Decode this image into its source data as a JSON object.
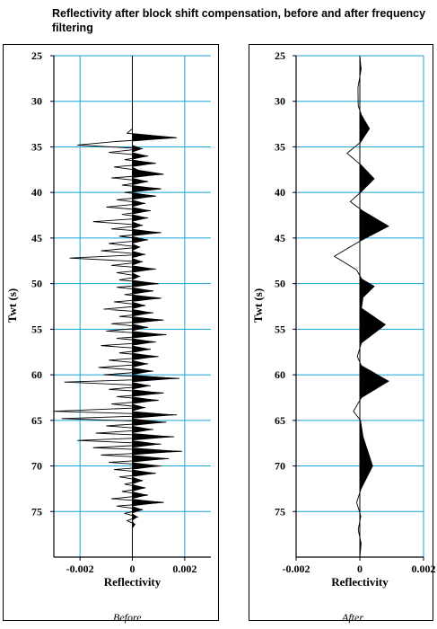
{
  "title": "Reflectivity after block shift compensation, before and after frequency filtering",
  "chart_data": [
    {
      "type": "line",
      "name": "before",
      "caption": "Before",
      "xlabel": "Reflectivity",
      "ylabel": "Twt (s)",
      "xlim": [
        -0.003,
        0.003
      ],
      "ylim": [
        25,
        80
      ],
      "y_inverted": true,
      "x_ticks": [
        -0.002,
        0,
        0.002
      ],
      "x_tick_labels": [
        "-0.002",
        "0",
        "0.002"
      ],
      "y_ticks": [
        25,
        30,
        35,
        40,
        45,
        50,
        55,
        60,
        65,
        70,
        75
      ],
      "y_tick_labels": [
        "25",
        "30",
        "35",
        "40",
        "45",
        "50",
        "55",
        "60",
        "65",
        "70",
        "75"
      ],
      "grid": true,
      "fill_positive": true,
      "series": [
        {
          "twt": [
            25,
            33.0,
            33.5,
            34.0,
            34.4,
            34.8,
            35.2,
            35.6,
            36.0,
            36.4,
            36.8,
            37.2,
            37.6,
            38.0,
            38.4,
            38.8,
            39.2,
            39.6,
            40.0,
            40.4,
            40.8,
            41.2,
            41.6,
            42.0,
            42.4,
            42.8,
            43.2,
            43.6,
            44.0,
            44.4,
            44.8,
            45.2,
            45.6,
            46.0,
            46.4,
            46.8,
            47.2,
            47.6,
            48.0,
            48.4,
            48.8,
            49.2,
            49.6,
            50.0,
            50.4,
            50.8,
            51.2,
            51.6,
            52.0,
            52.4,
            52.8,
            53.2,
            53.6,
            54.0,
            54.4,
            54.8,
            55.2,
            55.6,
            56.0,
            56.4,
            56.8,
            57.2,
            57.6,
            58.0,
            58.4,
            58.8,
            59.2,
            59.6,
            60.0,
            60.4,
            60.8,
            61.2,
            61.6,
            62.0,
            62.4,
            62.8,
            63.2,
            63.6,
            64.0,
            64.4,
            64.8,
            65.2,
            65.6,
            66.0,
            66.4,
            66.8,
            67.2,
            67.6,
            68.0,
            68.4,
            68.8,
            69.2,
            69.6,
            70.0,
            70.4,
            70.8,
            71.2,
            71.6,
            72.0,
            72.4,
            72.8,
            73.2,
            73.6,
            74.0,
            74.4,
            74.8,
            75.2,
            75.6,
            76.0,
            76.4,
            76.8,
            80
          ],
          "reflectivity": [
            0,
            0,
            -0.0002,
            0.0017,
            -0.0006,
            -0.0021,
            0.0004,
            -0.0009,
            0.0006,
            -0.0003,
            0.0009,
            -0.0007,
            0.0003,
            0.0012,
            -0.0008,
            0.0006,
            -0.0004,
            0.0011,
            -0.0003,
            0.0009,
            -0.0006,
            0.0005,
            -0.001,
            0.0007,
            -0.0004,
            0.0006,
            -0.0015,
            0.0004,
            -0.0008,
            0.0011,
            -0.0005,
            0.0006,
            -0.0009,
            0.0003,
            -0.0012,
            0.0005,
            -0.0024,
            0.0004,
            -0.0008,
            0.0009,
            -0.0006,
            0.0003,
            -0.0005,
            0.001,
            -0.0006,
            0.0008,
            -0.0003,
            0.0011,
            -0.0007,
            0.0005,
            -0.0011,
            0.0008,
            -0.0005,
            0.0012,
            -0.0008,
            0.0006,
            -0.001,
            0.0013,
            -0.0006,
            0.0009,
            -0.0012,
            0.0007,
            -0.0005,
            0.001,
            -0.0009,
            0.0006,
            -0.0013,
            0.0008,
            -0.0011,
            0.0018,
            -0.0026,
            0.0007,
            -0.0009,
            0.0012,
            -0.0006,
            0.001,
            -0.0008,
            0.0005,
            -0.003,
            0.0017,
            -0.0027,
            0.0013,
            -0.001,
            0.0008,
            -0.0014,
            0.0016,
            -0.0021,
            0.0011,
            -0.0015,
            0.0019,
            -0.0012,
            0.0014,
            -0.0009,
            0.0011,
            -0.0007,
            0.0009,
            -0.0005,
            0.0004,
            -0.0003,
            0.0005,
            -0.0004,
            0.0006,
            -0.0008,
            0.0012,
            -0.0006,
            0.0004,
            -0.0003,
            0.0002,
            -0.0002,
            0.0001,
            0,
            0
          ]
        }
      ]
    },
    {
      "type": "line",
      "name": "after",
      "caption": "After",
      "xlabel": "Reflectivity",
      "ylabel": "Twt (s)",
      "xlim": [
        -0.002,
        0.002
      ],
      "ylim": [
        25,
        80
      ],
      "y_inverted": true,
      "x_ticks": [
        -0.002,
        0,
        0.002
      ],
      "x_tick_labels": [
        "-0.002",
        "0",
        "0.002"
      ],
      "y_ticks": [
        25,
        30,
        35,
        40,
        45,
        50,
        55,
        60,
        65,
        70,
        75
      ],
      "y_tick_labels": [
        "25",
        "30",
        "35",
        "40",
        "45",
        "50",
        "55",
        "60",
        "65",
        "70",
        "75"
      ],
      "grid": true,
      "fill_positive": true,
      "series": [
        {
          "twt": [
            25,
            26.5,
            28.5,
            30.5,
            31.5,
            33.0,
            34.5,
            35.7,
            37.0,
            38.5,
            40.0,
            41.0,
            42.0,
            43.7,
            45.3,
            47.0,
            48.5,
            49.5,
            50.3,
            51.5,
            52.7,
            54.5,
            56.5,
            58.0,
            59.0,
            60.7,
            62.5,
            64.0,
            65.0,
            66.8,
            70.0,
            72.5,
            74.0,
            75.5,
            77.0,
            78.5,
            80
          ],
          "reflectivity": [
            0,
            4e-05,
            -6e-05,
            -5e-05,
            5e-05,
            0.0003,
            2e-05,
            -0.0004,
            4e-05,
            0.00045,
            2e-05,
            -0.0003,
            8e-05,
            0.0009,
            2e-05,
            -0.0008,
            -0.0001,
            6e-05,
            0.00045,
            0.0001,
            5e-05,
            0.0008,
            5e-05,
            -8e-05,
            5e-05,
            0.0009,
            5e-05,
            -0.0002,
            2e-05,
            0.0001,
            0.0004,
            4e-05,
            -0.0001,
            3e-05,
            -5e-05,
            4e-05,
            0
          ]
        }
      ]
    }
  ]
}
